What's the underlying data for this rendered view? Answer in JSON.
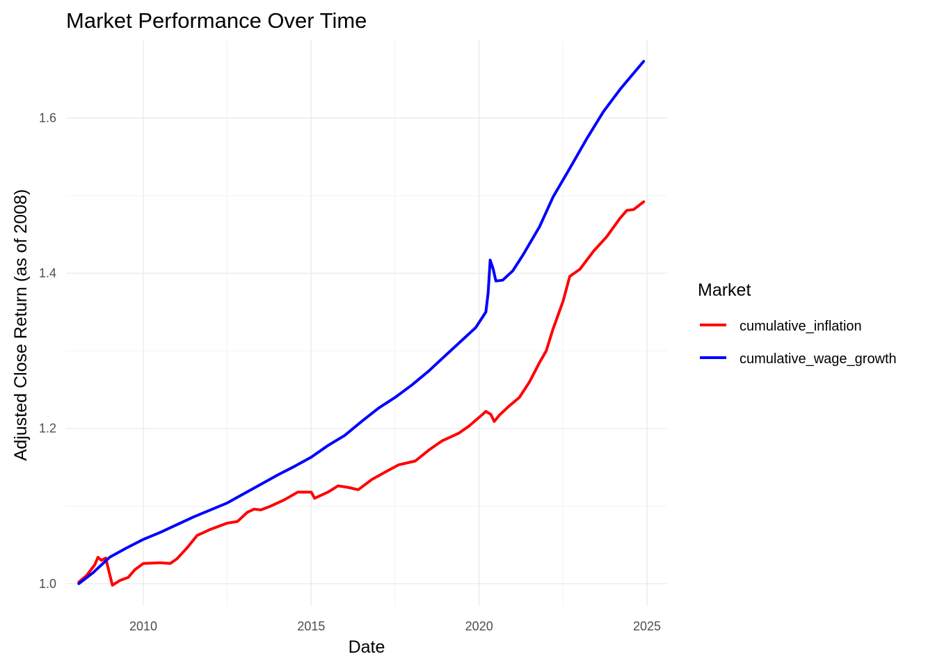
{
  "chart_data": {
    "type": "line",
    "title": "Market Performance Over Time",
    "xlabel": "Date",
    "ylabel": "Adjusted Close Return (as of 2008)",
    "xlim": [
      2007.7,
      2025.6
    ],
    "ylim": [
      0.972,
      1.7
    ],
    "x_ticks": [
      2010,
      2015,
      2020,
      2025
    ],
    "y_ticks": [
      1.0,
      1.2,
      1.4,
      1.6
    ],
    "x_tick_labels": [
      "2010",
      "2015",
      "2020",
      "2025"
    ],
    "y_tick_labels": [
      "1.0",
      "1.2",
      "1.4",
      "1.6"
    ],
    "grid": true,
    "legend": {
      "title": "Market",
      "position": "right"
    },
    "series": [
      {
        "name": "cumulative_inflation",
        "color": "#ff0000",
        "points": [
          [
            2008.08,
            1.002
          ],
          [
            2008.3,
            1.01
          ],
          [
            2008.55,
            1.024
          ],
          [
            2008.65,
            1.034
          ],
          [
            2008.75,
            1.03
          ],
          [
            2008.88,
            1.033
          ],
          [
            2008.98,
            1.015
          ],
          [
            2009.08,
            0.998
          ],
          [
            2009.3,
            1.004
          ],
          [
            2009.55,
            1.008
          ],
          [
            2009.75,
            1.018
          ],
          [
            2010.0,
            1.026
          ],
          [
            2010.5,
            1.027
          ],
          [
            2010.8,
            1.026
          ],
          [
            2011.0,
            1.032
          ],
          [
            2011.3,
            1.046
          ],
          [
            2011.6,
            1.062
          ],
          [
            2012.0,
            1.07
          ],
          [
            2012.5,
            1.078
          ],
          [
            2012.8,
            1.08
          ],
          [
            2013.1,
            1.092
          ],
          [
            2013.3,
            1.096
          ],
          [
            2013.5,
            1.095
          ],
          [
            2013.8,
            1.1
          ],
          [
            2014.2,
            1.108
          ],
          [
            2014.6,
            1.118
          ],
          [
            2015.0,
            1.118
          ],
          [
            2015.1,
            1.11
          ],
          [
            2015.5,
            1.118
          ],
          [
            2015.8,
            1.126
          ],
          [
            2016.1,
            1.124
          ],
          [
            2016.4,
            1.121
          ],
          [
            2016.8,
            1.134
          ],
          [
            2017.3,
            1.146
          ],
          [
            2017.6,
            1.153
          ],
          [
            2018.1,
            1.158
          ],
          [
            2018.5,
            1.172
          ],
          [
            2018.9,
            1.184
          ],
          [
            2019.4,
            1.194
          ],
          [
            2019.7,
            1.203
          ],
          [
            2020.1,
            1.218
          ],
          [
            2020.2,
            1.222
          ],
          [
            2020.35,
            1.218
          ],
          [
            2020.45,
            1.209
          ],
          [
            2020.6,
            1.217
          ],
          [
            2020.9,
            1.229
          ],
          [
            2021.2,
            1.24
          ],
          [
            2021.5,
            1.26
          ],
          [
            2021.8,
            1.285
          ],
          [
            2022.0,
            1.3
          ],
          [
            2022.2,
            1.328
          ],
          [
            2022.5,
            1.364
          ],
          [
            2022.7,
            1.396
          ],
          [
            2023.0,
            1.405
          ],
          [
            2023.4,
            1.428
          ],
          [
            2023.8,
            1.447
          ],
          [
            2024.2,
            1.471
          ],
          [
            2024.4,
            1.481
          ],
          [
            2024.6,
            1.482
          ],
          [
            2024.9,
            1.492
          ]
        ]
      },
      {
        "name": "cumulative_wage_growth",
        "color": "#0000ff",
        "points": [
          [
            2008.08,
            1.0
          ],
          [
            2008.5,
            1.014
          ],
          [
            2009.0,
            1.034
          ],
          [
            2009.5,
            1.046
          ],
          [
            2010.0,
            1.057
          ],
          [
            2010.5,
            1.066
          ],
          [
            2011.0,
            1.076
          ],
          [
            2011.5,
            1.086
          ],
          [
            2012.0,
            1.095
          ],
          [
            2012.5,
            1.104
          ],
          [
            2013.0,
            1.116
          ],
          [
            2013.5,
            1.128
          ],
          [
            2014.0,
            1.14
          ],
          [
            2014.5,
            1.151
          ],
          [
            2015.0,
            1.163
          ],
          [
            2015.5,
            1.178
          ],
          [
            2016.0,
            1.191
          ],
          [
            2016.5,
            1.209
          ],
          [
            2017.0,
            1.226
          ],
          [
            2017.5,
            1.24
          ],
          [
            2018.0,
            1.256
          ],
          [
            2018.5,
            1.274
          ],
          [
            2019.0,
            1.294
          ],
          [
            2019.5,
            1.314
          ],
          [
            2019.9,
            1.33
          ],
          [
            2020.2,
            1.35
          ],
          [
            2020.27,
            1.375
          ],
          [
            2020.33,
            1.417
          ],
          [
            2020.42,
            1.405
          ],
          [
            2020.5,
            1.39
          ],
          [
            2020.7,
            1.391
          ],
          [
            2021.0,
            1.403
          ],
          [
            2021.3,
            1.423
          ],
          [
            2021.8,
            1.46
          ],
          [
            2022.2,
            1.498
          ],
          [
            2022.7,
            1.535
          ],
          [
            2023.2,
            1.573
          ],
          [
            2023.7,
            1.608
          ],
          [
            2024.2,
            1.637
          ],
          [
            2024.9,
            1.673
          ]
        ]
      }
    ]
  }
}
